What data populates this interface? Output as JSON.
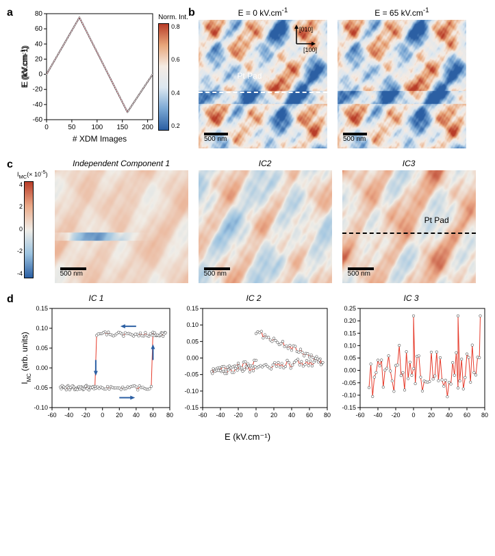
{
  "panelA": {
    "label": "a",
    "ylabel": "E (kV.cm⁻¹)",
    "xlabel": "# XDM Images",
    "xlim": [
      0,
      210
    ],
    "ylim": [
      -60,
      80
    ],
    "xticks": [
      0,
      50,
      100,
      150,
      200
    ],
    "yticks": [
      -60,
      -40,
      -20,
      0,
      20,
      40,
      60,
      80
    ],
    "line_color": "#c41e3a",
    "marker_color": "#ffffff",
    "marker_edge": "#000000",
    "waveform_points": [
      [
        0,
        0
      ],
      [
        65,
        75
      ],
      [
        160,
        -50
      ],
      [
        210,
        0
      ]
    ],
    "colorbar": {
      "title": "Norm. Int.",
      "ticks": [
        0.2,
        0.4,
        0.6,
        0.8
      ],
      "colors": [
        "#2b5fa3",
        "#7ba8d4",
        "#dce7f0",
        "#f5ebe3",
        "#e8a67a",
        "#b83c28"
      ]
    }
  },
  "panelB": {
    "label": "b",
    "images": [
      {
        "title": "E = 0 kV.cm⁻¹",
        "scale_label": "500 nm",
        "overlay": "Pt Pad"
      },
      {
        "title": "E = 65 kV.cm⁻¹",
        "scale_label": "500 nm"
      }
    ],
    "axes_arrows": {
      "labels": [
        "[010]",
        "[100]"
      ]
    },
    "width": 188,
    "height": 188,
    "colormap": [
      "#2b5fa3",
      "#7ba8d4",
      "#dce7f0",
      "#f5ebe3",
      "#e8a67a",
      "#b83c28"
    ]
  },
  "panelC": {
    "label": "c",
    "colorbar": {
      "title": "I_MC (× 10⁻⁵)",
      "ticks": [
        -4,
        -2,
        0,
        2,
        4
      ],
      "colors": [
        "#2b5fa3",
        "#9cc3e0",
        "#f0ede7",
        "#eaa988",
        "#b83c28"
      ]
    },
    "images": [
      {
        "title": "Independent Component 1",
        "scale_label": "500 nm",
        "style": "ic1"
      },
      {
        "title": "IC2",
        "scale_label": "500 nm",
        "style": "ic2"
      },
      {
        "title": "IC3",
        "scale_label": "500 nm",
        "overlay": "Pt Pad",
        "style": "ic3",
        "dashed": true
      }
    ],
    "width": 195,
    "height": 165,
    "colormap": [
      "#2b5fa3",
      "#9cc3e0",
      "#f0ede7",
      "#eaa988",
      "#b83c28"
    ]
  },
  "panelD": {
    "label": "d",
    "xlabel": "E (kV.cm⁻¹)",
    "ylabel": "I_MC (arb. units)",
    "charts": [
      {
        "title": "IC 1",
        "xlim": [
          -60,
          80
        ],
        "ylim": [
          -0.1,
          0.15
        ],
        "xticks": [
          -60,
          -40,
          -20,
          0,
          20,
          40,
          60,
          80
        ],
        "yticks": [
          -0.1,
          -0.05,
          0.0,
          0.05,
          0.1,
          0.15
        ],
        "line_color": "#e63929",
        "arrows": true,
        "type": "hysteresis",
        "hyst": {
          "low": -0.05,
          "high": 0.085,
          "x_up": 60,
          "x_down": -8
        }
      },
      {
        "title": "IC 2",
        "xlim": [
          -60,
          80
        ],
        "ylim": [
          -0.15,
          0.15
        ],
        "xticks": [
          -60,
          -40,
          -20,
          0,
          20,
          40,
          60,
          80
        ],
        "yticks": [
          -0.15,
          -0.1,
          -0.05,
          0.0,
          0.05,
          0.1,
          0.15
        ],
        "line_color": "#e63929",
        "type": "drift"
      },
      {
        "title": "IC 3",
        "xlim": [
          -60,
          80
        ],
        "ylim": [
          -0.15,
          0.25
        ],
        "xticks": [
          -60,
          -40,
          -20,
          0,
          20,
          40,
          60,
          80
        ],
        "yticks": [
          -0.15,
          -0.1,
          -0.05,
          0.0,
          0.05,
          0.1,
          0.15,
          0.2,
          0.25
        ],
        "line_color": "#e63929",
        "type": "noisy"
      }
    ]
  },
  "colors": {
    "bg": "#ffffff",
    "axis": "#000000",
    "arrow": "#2b5fa3"
  }
}
